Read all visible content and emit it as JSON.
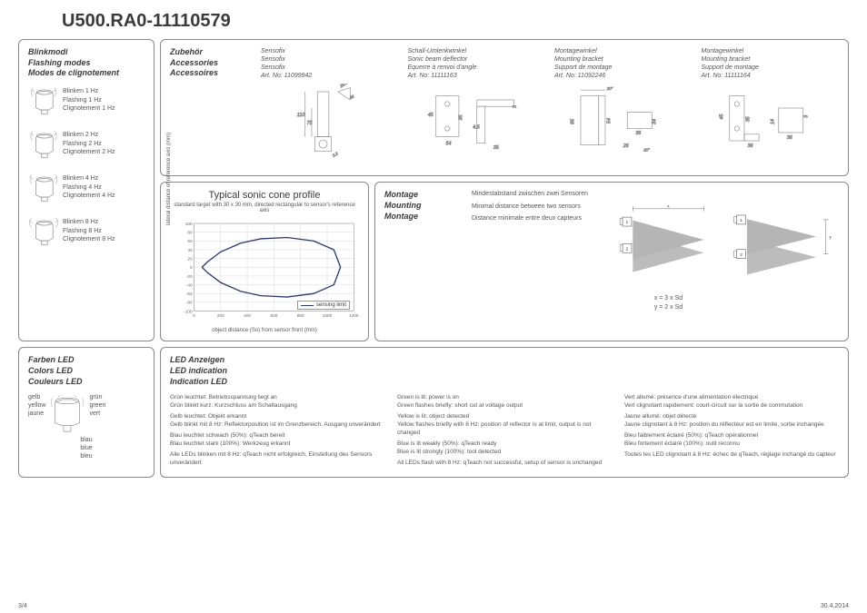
{
  "title": "U500.RA0-11110579",
  "page": "3/4",
  "date": "30.4.2014",
  "flashing": {
    "heading": [
      "Blinkmodi",
      "Flashing modes",
      "Modes de clignotement"
    ],
    "items": [
      {
        "de": "Blinken 1 Hz",
        "en": "Flashing 1 Hz",
        "fr": "Clignotement 1 Hz"
      },
      {
        "de": "Blinken 2 Hz",
        "en": "Flashing 2 Hz",
        "fr": "Clignotement 2 Hz"
      },
      {
        "de": "Blinken 4 Hz",
        "en": "Flashing 4 Hz",
        "fr": "Clignotement 4 Hz"
      },
      {
        "de": "Blinken 8 Hz",
        "en": "Flashing 8 Hz",
        "fr": "Clignotement 8 Hz"
      }
    ]
  },
  "accessories": {
    "heading": [
      "Zubehör",
      "Accessories",
      "Accessoires"
    ],
    "items": [
      {
        "l1": "Sensofix",
        "l2": "Sensofix",
        "l3": "Sensofix",
        "art": "Art. No: 11099942"
      },
      {
        "l1": "Schall-Umlenkwinkel",
        "l2": "Sonic beam deflector",
        "l3": "Equerre à renvoi d'angle",
        "art": "Art. No: 11111163"
      },
      {
        "l1": "Montagewinkel",
        "l2": "Mounting bracket",
        "l3": "Support de montage",
        "art": "Art. No: 11092246"
      },
      {
        "l1": "Montagewinkel",
        "l2": "Mounting bracket",
        "l3": "Support de montage",
        "art": "Art. No: 11111164"
      }
    ]
  },
  "chart": {
    "title": "Typical sonic cone profile",
    "subtitle": "standard target with 30 x 30 mm, directed rectangular to sensor's reference axis",
    "ylabel": "lateral distance of reference axis (mm)",
    "xlabel": "object distance (So) from sensor front (mm)",
    "legend": "sensing limit",
    "xlim": [
      0,
      1200
    ],
    "xtick_step": 200,
    "ylim": [
      -100,
      100
    ],
    "ytick_step": 20,
    "yticks": [
      100,
      80,
      60,
      40,
      20,
      0,
      -20,
      -40,
      -60,
      -80,
      -100
    ],
    "xticks": [
      0,
      200,
      400,
      600,
      800,
      1000,
      1200
    ],
    "line_color": "#2a3a6a",
    "grid_color": "#cccccc",
    "upper": [
      [
        60,
        0
      ],
      [
        100,
        12
      ],
      [
        200,
        35
      ],
      [
        350,
        55
      ],
      [
        500,
        65
      ],
      [
        700,
        68
      ],
      [
        900,
        60
      ],
      [
        1050,
        40
      ],
      [
        1100,
        0
      ]
    ],
    "lower": [
      [
        60,
        0
      ],
      [
        100,
        -12
      ],
      [
        200,
        -35
      ],
      [
        350,
        -55
      ],
      [
        500,
        -65
      ],
      [
        700,
        -68
      ],
      [
        900,
        -60
      ],
      [
        1050,
        -40
      ],
      [
        1100,
        0
      ]
    ]
  },
  "mounting": {
    "heading": [
      "Montage",
      "Mounting",
      "Montage"
    ],
    "text": [
      "Mindestabstand zwischen zwei Sensoren",
      "Minimal distance between two sensors",
      "Distance minimale entre deux capteurs"
    ],
    "formula": [
      "x = 3 x Sd",
      "y = 2 x Sd"
    ],
    "dim_x": "x",
    "dim_y": "y",
    "cone_color": "#b5b5b5"
  },
  "colors_led": {
    "heading": [
      "Farben LED",
      "Colors LED",
      "Couleurs LED"
    ],
    "left": [
      "gelb",
      "yellow",
      "jaune"
    ],
    "right": [
      "grün",
      "green",
      "vert"
    ],
    "bottom": [
      "blau",
      "blue",
      "bleu"
    ]
  },
  "led_indication": {
    "heading": [
      "LED Anzeigen",
      "LED indication",
      "Indication LED"
    ],
    "cols": [
      [
        "Grün leuchtet: Betriebsspannung liegt an\nGrün blinkt kurz: Kurzschluss am Schaltausgang",
        "Gelb leuchtet: Objekt erkannt\nGelb blinkt mit 8 Hz: Reflektorposition ist im Grenzbereich, Ausgang unverändert",
        "Blau leuchtet schwach (50%): qTeach bereit\nBlau leuchtet stark (100%): Werkzeug erkannt",
        "Alle LEDs blinken mit 8 Hz: qTeach nicht erfolgreich, Einstellung des Sensors unverändert"
      ],
      [
        "Green is lit: power is on\nGreen flashes briefly: short cut at voltage output",
        "Yellow is lit: object detected\nYellow flashes briefly with 8 Hz: position of reflector is at limit, output is not changed",
        "Blue is lit weakly (50%): qTeach ready\nBlue is lit strongly (100%): tool detected",
        "All LEDs flash with 8 Hz: qTeach not successful, setup of sensor is unchanged"
      ],
      [
        "Vert allumé: présence d'une alimentation électrique\nVert clignotant rapidement: court-circuit sur la sortie de commutation",
        "Jaune allumé: objet détecté\nJaune clignotant à 8 Hz: position du réflecteur est en limite, sortie inchangée",
        "Bleu faiblement éclairé (50%): qTeach opérationnel\nBleu fortement éclairé (100%): outil reconnu",
        "Toutes les LED clignotant à 8 Hz: échec de qTeach, réglage inchangé du capteur"
      ]
    ]
  }
}
